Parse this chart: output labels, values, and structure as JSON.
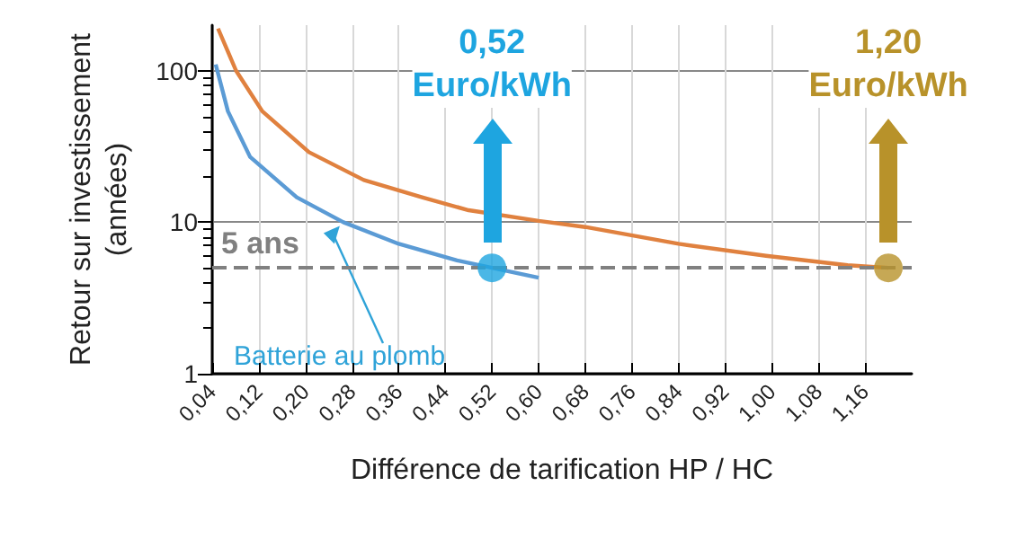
{
  "chart_data": {
    "type": "line",
    "xlabel": "Différence de tarification HP / HC",
    "ylabel": "Retour sur investissement\n(années)",
    "log": "y",
    "grid": true,
    "legend": false,
    "marker": "none",
    "xlim": [
      0.04,
      1.24
    ],
    "xticks": [
      {
        "value": 0.04,
        "label": "0,04"
      },
      {
        "value": 0.12,
        "label": "0,12"
      },
      {
        "value": 0.2,
        "label": "0,20"
      },
      {
        "value": 0.28,
        "label": "0,28"
      },
      {
        "value": 0.36,
        "label": "0,36"
      },
      {
        "value": 0.44,
        "label": "0,44"
      },
      {
        "value": 0.52,
        "label": "0,52"
      },
      {
        "value": 0.6,
        "label": "0,60"
      },
      {
        "value": 0.68,
        "label": "0,68"
      },
      {
        "value": 0.76,
        "label": "0,76"
      },
      {
        "value": 0.84,
        "label": "0,84"
      },
      {
        "value": 0.92,
        "label": "0,92"
      },
      {
        "value": 1.0,
        "label": "1,00"
      },
      {
        "value": 1.08,
        "label": "1,08"
      },
      {
        "value": 1.16,
        "label": "1,16"
      }
    ],
    "ylim": [
      1,
      200
    ],
    "yticks": [
      1,
      10,
      100
    ],
    "series": [
      {
        "color": "#e0813f",
        "x": [
          0.05,
          0.081,
          0.126,
          0.206,
          0.3,
          0.4,
          0.48,
          0.6,
          0.68,
          0.84,
          0.99,
          1.13,
          1.2
        ],
        "values": [
          190,
          100,
          54,
          29,
          19,
          14.6,
          12,
          10.2,
          9.3,
          7.2,
          6,
          5.2,
          5
        ]
      },
      {
        "name": "Batterie au plomb",
        "color": "#5b9bd5",
        "x": [
          0.046,
          0.067,
          0.105,
          0.185,
          0.265,
          0.36,
          0.46,
          0.52,
          0.6
        ],
        "values": [
          110,
          54,
          27,
          14.6,
          10,
          7.2,
          5.6,
          5,
          4.3
        ]
      },
      {
        "type": "scatter",
        "marker": "circle",
        "x": [
          0.52,
          1.2
        ],
        "values": [
          5,
          5
        ],
        "colors": [
          "#1ea5e0",
          "#b8922a"
        ]
      }
    ],
    "ref_lines": [
      {
        "axis": "y",
        "value": 5,
        "label": "5 ans",
        "color": "#808080",
        "line_style": "dashed"
      }
    ],
    "annotations": [
      "0,52\nEuro/kWh",
      "1,20\nEuro/kWh"
    ]
  }
}
